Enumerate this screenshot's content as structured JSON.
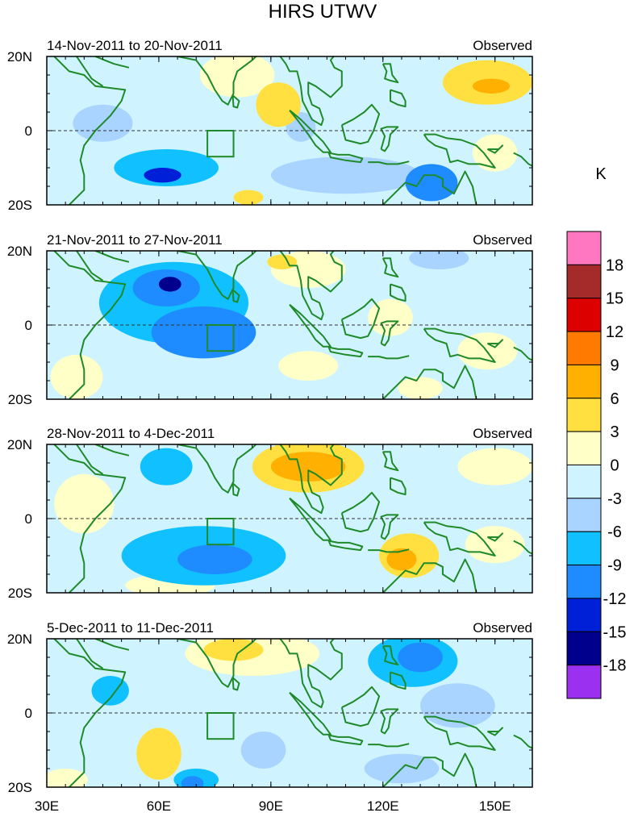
{
  "chart_data": {
    "type": "heatmap",
    "title": "HIRS UTWV",
    "colorbar": {
      "unit": "K",
      "levels": [
        "18",
        "15",
        "12",
        "9",
        "6",
        "3",
        "0",
        "-3",
        "-6",
        "-9",
        "-12",
        "-15",
        "-18"
      ],
      "colors": [
        "#ff77c0",
        "#a52a2a",
        "#dd0000",
        "#ff7a00",
        "#ffb000",
        "#ffe040",
        "#ffffc8",
        "#d0f4ff",
        "#a8d4ff",
        "#10c0ff",
        "#1e8cff",
        "#0020d8",
        "#00008c",
        "#9b30f0"
      ]
    },
    "x_axis": {
      "range": [
        30,
        160
      ],
      "ticks": [
        30,
        60,
        90,
        120,
        150
      ],
      "tick_labels": [
        "30E",
        "60E",
        "90E",
        "120E",
        "150E"
      ]
    },
    "y_axis": {
      "range": [
        -20,
        20
      ],
      "ticks": [
        20,
        0,
        -20
      ],
      "tick_labels": [
        "20N",
        "0",
        "20S"
      ]
    },
    "box_region": {
      "lon": [
        73,
        80
      ],
      "lat": [
        -7,
        0
      ]
    },
    "panels": [
      {
        "period": "14-Nov-2011 to 20-Nov-2011",
        "label": "Observed",
        "blobs": [
          {
            "lon": 62,
            "lat": -10,
            "rx": 14,
            "ry": 5,
            "value": -6
          },
          {
            "lon": 61,
            "lat": -12,
            "rx": 5,
            "ry": 2,
            "value": -12
          },
          {
            "lon": 45,
            "lat": 2,
            "rx": 8,
            "ry": 5,
            "value": -3
          },
          {
            "lon": 81,
            "lat": 15,
            "rx": 10,
            "ry": 6,
            "value": 3
          },
          {
            "lon": 92,
            "lat": 7,
            "rx": 6,
            "ry": 6,
            "value": 6
          },
          {
            "lon": 148,
            "lat": 13,
            "rx": 12,
            "ry": 6,
            "value": 6
          },
          {
            "lon": 149,
            "lat": 12,
            "rx": 5,
            "ry": 2,
            "value": 9
          },
          {
            "lon": 133,
            "lat": -14,
            "rx": 7,
            "ry": 5,
            "value": -9
          },
          {
            "lon": 110,
            "lat": -12,
            "rx": 20,
            "ry": 5,
            "value": -3
          },
          {
            "lon": 150,
            "lat": -6,
            "rx": 6,
            "ry": 5,
            "value": 3
          },
          {
            "lon": 98,
            "lat": 1,
            "rx": 4,
            "ry": 4,
            "value": -3
          },
          {
            "lon": 84,
            "lat": -18,
            "rx": 4,
            "ry": 2,
            "value": 6
          }
        ]
      },
      {
        "period": "21-Nov-2011 to 27-Nov-2011",
        "label": "Observed",
        "blobs": [
          {
            "lon": 64,
            "lat": 6,
            "rx": 20,
            "ry": 11,
            "value": -6
          },
          {
            "lon": 62,
            "lat": 10,
            "rx": 9,
            "ry": 5,
            "value": -9
          },
          {
            "lon": 63,
            "lat": 11,
            "rx": 3,
            "ry": 2,
            "value": -15
          },
          {
            "lon": 72,
            "lat": -2,
            "rx": 14,
            "ry": 7,
            "value": -9
          },
          {
            "lon": 100,
            "lat": 15,
            "rx": 10,
            "ry": 5,
            "value": 3
          },
          {
            "lon": 93,
            "lat": 17,
            "rx": 4,
            "ry": 2,
            "value": 6
          },
          {
            "lon": 122,
            "lat": 2,
            "rx": 6,
            "ry": 5,
            "value": 3
          },
          {
            "lon": 100,
            "lat": -11,
            "rx": 8,
            "ry": 4,
            "value": 3
          },
          {
            "lon": 38,
            "lat": -14,
            "rx": 7,
            "ry": 6,
            "value": 3
          },
          {
            "lon": 148,
            "lat": -7,
            "rx": 8,
            "ry": 5,
            "value": 3
          },
          {
            "lon": 130,
            "lat": -17,
            "rx": 6,
            "ry": 3,
            "value": 3
          },
          {
            "lon": 135,
            "lat": 18,
            "rx": 8,
            "ry": 3,
            "value": -3
          }
        ]
      },
      {
        "period": "28-Nov-2011 to 4-Dec-2011",
        "label": "Observed",
        "blobs": [
          {
            "lon": 100,
            "lat": 14,
            "rx": 15,
            "ry": 7,
            "value": 6
          },
          {
            "lon": 100,
            "lat": 14,
            "rx": 10,
            "ry": 4,
            "value": 9
          },
          {
            "lon": 72,
            "lat": -10,
            "rx": 22,
            "ry": 8,
            "value": -6
          },
          {
            "lon": 75,
            "lat": -11,
            "rx": 10,
            "ry": 4,
            "value": -9
          },
          {
            "lon": 62,
            "lat": 14,
            "rx": 7,
            "ry": 5,
            "value": -6
          },
          {
            "lon": 127,
            "lat": -10,
            "rx": 8,
            "ry": 6,
            "value": 6
          },
          {
            "lon": 125,
            "lat": -11,
            "rx": 4,
            "ry": 3,
            "value": 9
          },
          {
            "lon": 150,
            "lat": 14,
            "rx": 10,
            "ry": 5,
            "value": 3
          },
          {
            "lon": 40,
            "lat": 4,
            "rx": 8,
            "ry": 8,
            "value": 3
          },
          {
            "lon": 63,
            "lat": -18,
            "rx": 12,
            "ry": 3,
            "value": 3
          },
          {
            "lon": 150,
            "lat": -7,
            "rx": 8,
            "ry": 5,
            "value": 3
          }
        ]
      },
      {
        "period": "5-Dec-2011 to 11-Dec-2011",
        "label": "Observed",
        "blobs": [
          {
            "lon": 85,
            "lat": 16,
            "rx": 18,
            "ry": 6,
            "value": 3
          },
          {
            "lon": 80,
            "lat": 17,
            "rx": 8,
            "ry": 3,
            "value": 6
          },
          {
            "lon": 60,
            "lat": -11,
            "rx": 6,
            "ry": 7,
            "value": 6
          },
          {
            "lon": 128,
            "lat": 14,
            "rx": 12,
            "ry": 7,
            "value": -6
          },
          {
            "lon": 130,
            "lat": 15,
            "rx": 6,
            "ry": 4,
            "value": -9
          },
          {
            "lon": 140,
            "lat": 2,
            "rx": 10,
            "ry": 6,
            "value": -3
          },
          {
            "lon": 88,
            "lat": -10,
            "rx": 6,
            "ry": 5,
            "value": -3
          },
          {
            "lon": 70,
            "lat": -18,
            "rx": 6,
            "ry": 3,
            "value": -6
          },
          {
            "lon": 69,
            "lat": -19,
            "rx": 3,
            "ry": 2,
            "value": -9
          },
          {
            "lon": 47,
            "lat": 6,
            "rx": 5,
            "ry": 4,
            "value": -6
          },
          {
            "lon": 35,
            "lat": -18,
            "rx": 6,
            "ry": 3,
            "value": 3
          },
          {
            "lon": 125,
            "lat": -15,
            "rx": 10,
            "ry": 4,
            "value": -3
          }
        ]
      }
    ]
  }
}
